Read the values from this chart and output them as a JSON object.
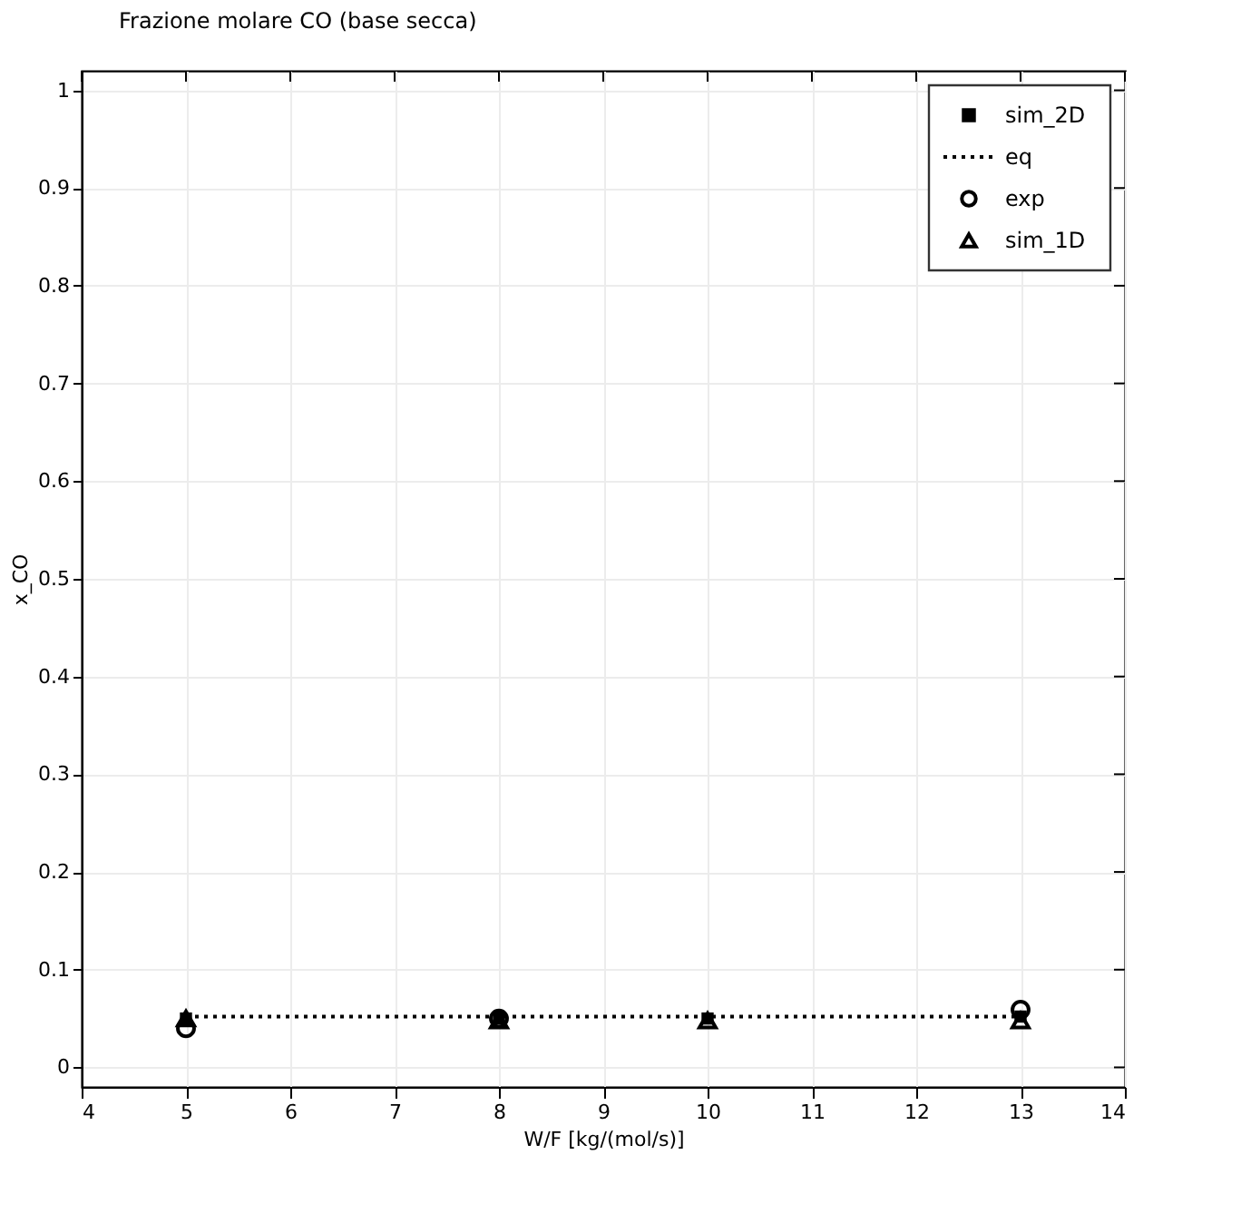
{
  "chart_data": {
    "type": "scatter",
    "title": "Frazione molare CO (base secca)",
    "xlabel": "W/F [kg/(mol/s)]",
    "ylabel": "x_CO",
    "xlim": [
      4,
      14
    ],
    "xticks": [
      4,
      5,
      6,
      7,
      8,
      9,
      10,
      11,
      12,
      13,
      14
    ],
    "ylim": [
      -0.02,
      1.02
    ],
    "yticks": [
      0,
      0.1,
      0.2,
      0.3,
      0.4,
      0.5,
      0.6,
      0.7,
      0.8,
      0.9,
      1
    ],
    "grid": true,
    "legend": "top right",
    "series": [
      {
        "name": "sim_2D",
        "type": "scatter",
        "marker": "square",
        "color": "#000000",
        "x": [
          5,
          8,
          10,
          13
        ],
        "values": [
          0.05,
          0.05,
          0.05,
          0.052
        ]
      },
      {
        "name": "eq",
        "type": "line",
        "marker": "none",
        "line_style": "dotted",
        "color": "#000000",
        "x": [
          5,
          8,
          10,
          13
        ],
        "values": [
          0.052,
          0.052,
          0.052,
          0.052
        ]
      },
      {
        "name": "exp",
        "type": "scatter",
        "marker": "circle",
        "color": "#000000",
        "x": [
          5,
          8,
          10,
          13
        ],
        "values": [
          0.04,
          0.05,
          null,
          0.059
        ]
      },
      {
        "name": "sim_1D",
        "type": "scatter",
        "marker": "triangle",
        "color": "#000000",
        "x": [
          5,
          8,
          10,
          13
        ],
        "values": [
          0.05,
          0.048,
          0.048,
          0.048
        ]
      }
    ]
  }
}
